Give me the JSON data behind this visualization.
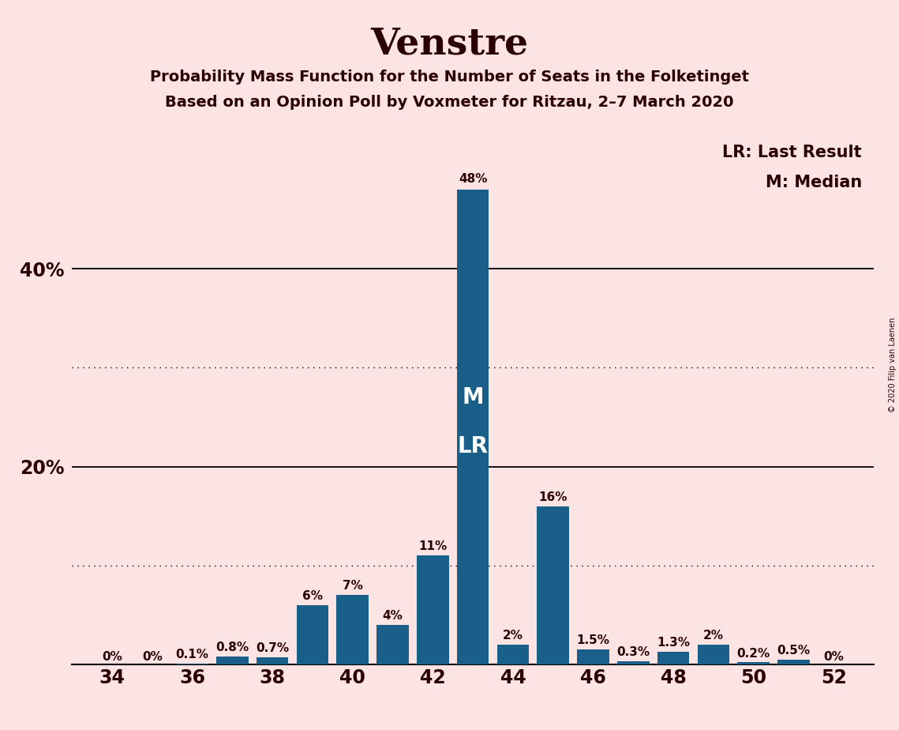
{
  "title": "Venstre",
  "subtitle1": "Probability Mass Function for the Number of Seats in the Folketinget",
  "subtitle2": "Based on an Opinion Poll by Voxmeter for Ritzau, 2–7 March 2020",
  "copyright": "© 2020 Filip van Laenen",
  "legend_lr": "LR: Last Result",
  "legend_m": "M: Median",
  "seats": [
    34,
    35,
    36,
    37,
    38,
    39,
    40,
    41,
    42,
    43,
    44,
    45,
    46,
    47,
    48,
    49,
    50,
    51,
    52
  ],
  "probabilities": [
    0.0,
    0.0,
    0.1,
    0.8,
    0.7,
    6.0,
    7.0,
    4.0,
    11.0,
    48.0,
    2.0,
    16.0,
    1.5,
    0.3,
    1.3,
    2.0,
    0.2,
    0.5,
    0.0
  ],
  "labels": [
    "0%",
    "0%",
    "0.1%",
    "0.8%",
    "0.7%",
    "6%",
    "7%",
    "4%",
    "11%",
    "48%",
    "2%",
    "16%",
    "1.5%",
    "0.3%",
    "1.3%",
    "2%",
    "0.2%",
    "0.5%",
    "0%"
  ],
  "median_seat": 43,
  "lr_seat": 43,
  "bar_color": "#1a5f8a",
  "background_color": "#fce4e4",
  "text_color": "#2b0000",
  "bar_text_color_outside": "#2b0000",
  "bar_text_color_inside": "#ffffff",
  "yticks": [
    20,
    40
  ],
  "ytick_labels": [
    "20%",
    "40%"
  ],
  "dotted_lines": [
    10,
    30
  ],
  "solid_lines": [
    20,
    40
  ],
  "ylim": [
    0,
    55
  ],
  "xlim_min": 33,
  "xlim_max": 53,
  "bar_width": 0.8,
  "m_y": 27,
  "lr_y": 22,
  "label_fontsize": 11,
  "tick_label_fontsize": 17,
  "ytick_label_fontsize": 17,
  "title_fontsize": 34,
  "subtitle_fontsize": 14,
  "legend_fontsize": 15,
  "copyright_fontsize": 7,
  "ml_fontsize": 20
}
